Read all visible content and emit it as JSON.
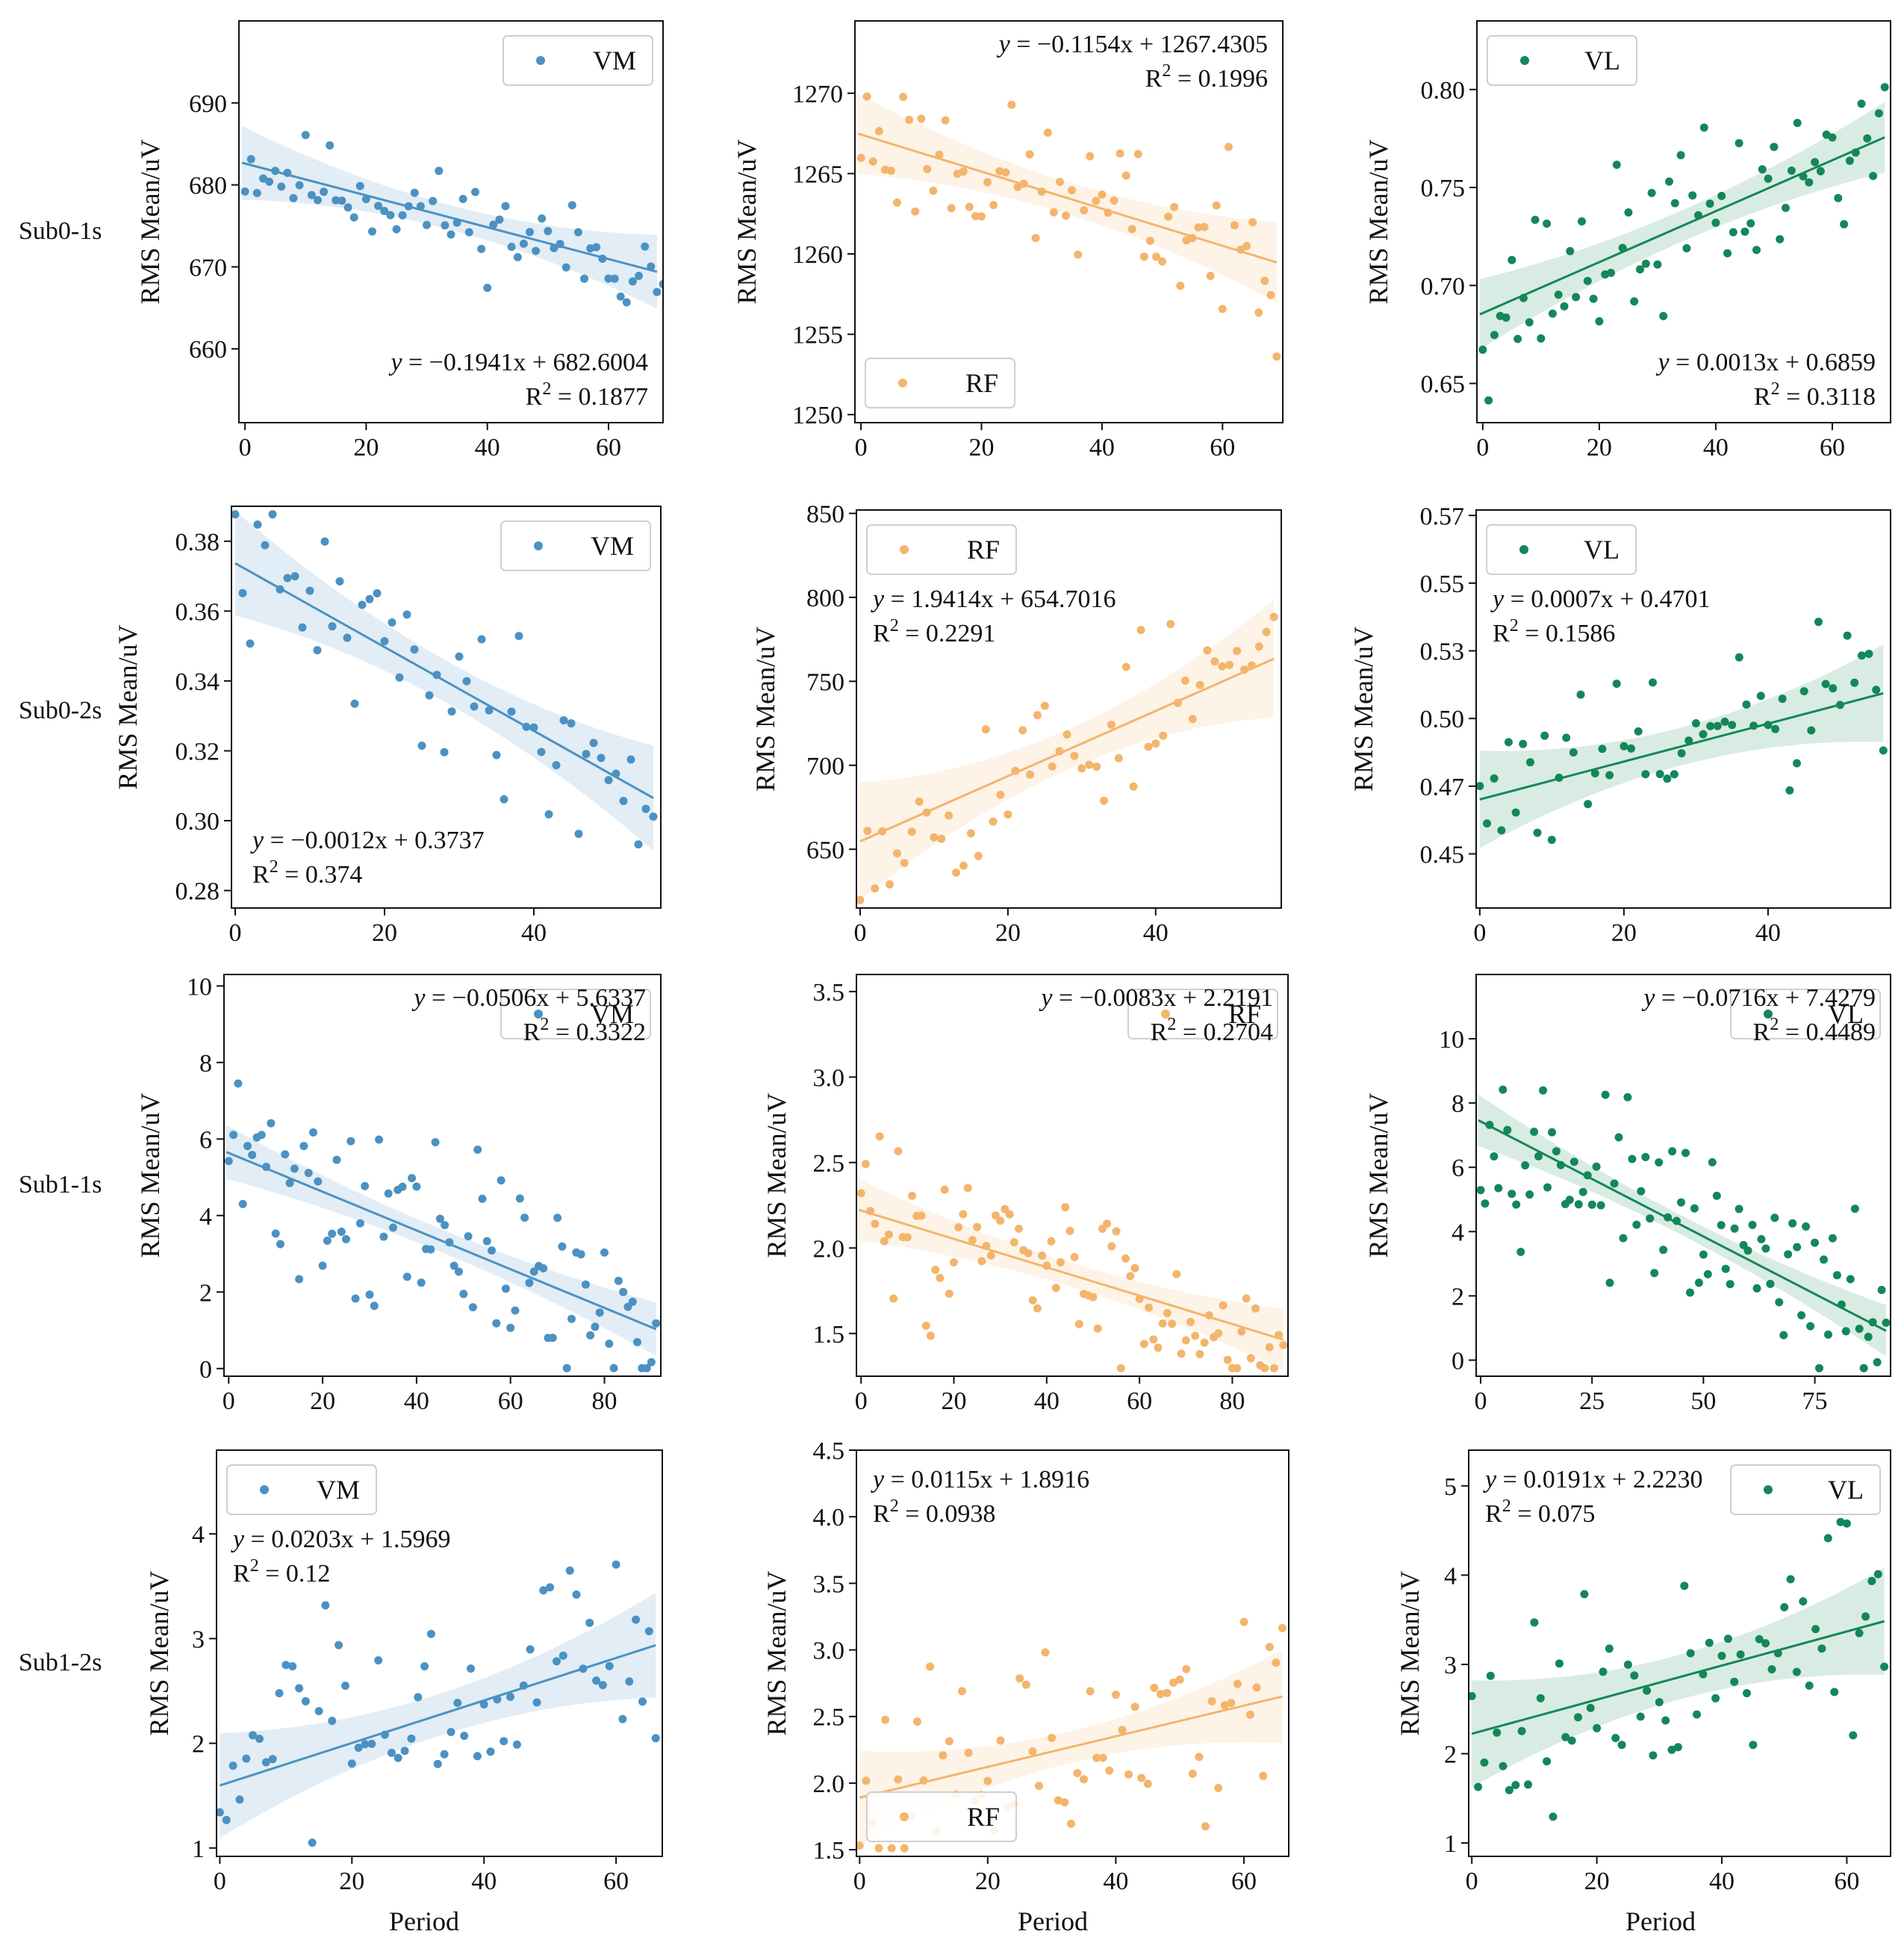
{
  "figure": {
    "x_axis_label": "Period",
    "y_axis_label": "RMS Mean/uV",
    "row_labels": [
      "Sub0-1s",
      "Sub0-2s",
      "Sub1-1s",
      "Sub1-2s"
    ],
    "colors": {
      "VM": "#4b91c2",
      "RF": "#f3b56c",
      "VL": "#13875a"
    }
  },
  "chart_data": [
    {
      "type": "scatter",
      "row": 0,
      "col": 0,
      "series_name": "VM",
      "legend_pos": "top-right",
      "eq_pos": "bottom-right",
      "equation_y": "y",
      "equation_rest": " = −0.1941x + 682.6004",
      "r2_label": "R",
      "r2_sup": "2",
      "r2_value": " = 0.1877",
      "slope": -0.1941,
      "intercept": 682.6004,
      "ci_halfwidth": [
        4.5,
        1.5,
        4
      ],
      "xlim": [
        -1,
        69
      ],
      "ylim": [
        651,
        700
      ],
      "xticks": [
        0,
        20,
        40,
        60
      ],
      "yticks": [
        660,
        670,
        680,
        690
      ],
      "grid": false,
      "noise": 6,
      "seed": 11,
      "n_points": 70
    },
    {
      "type": "scatter",
      "row": 0,
      "col": 1,
      "series_name": "RF",
      "legend_pos": "bottom-left",
      "eq_pos": "top-right",
      "equation_y": "y",
      "equation_rest": " = −0.1154x + 1267.4305",
      "r2_label": "R",
      "r2_sup": "2",
      "r2_value": " = 0.1996",
      "slope": -0.1154,
      "intercept": 1267.4305,
      "ci_halfwidth": [
        2.5,
        1,
        2.5
      ],
      "xlim": [
        -1,
        70
      ],
      "ylim": [
        1249.5,
        1274.5
      ],
      "xticks": [
        0,
        20,
        40,
        60
      ],
      "yticks": [
        1250,
        1255,
        1260,
        1265,
        1270
      ],
      "grid": false,
      "noise": 5,
      "seed": 23,
      "n_points": 70
    },
    {
      "type": "scatter",
      "row": 0,
      "col": 2,
      "series_name": "VL",
      "legend_pos": "top-left",
      "eq_pos": "bottom-right",
      "equation_y": "y",
      "equation_rest": " = 0.0013x + 0.6859",
      "r2_label": "R",
      "r2_sup": "2",
      "r2_value": " = 0.3118",
      "slope": 0.0013,
      "intercept": 0.6859,
      "ci_halfwidth": [
        0.018,
        0.008,
        0.018
      ],
      "xlim": [
        -1,
        70
      ],
      "ylim": [
        0.63,
        0.835
      ],
      "xticks": [
        0,
        20,
        40,
        60
      ],
      "yticks": [
        0.65,
        0.7,
        0.75,
        0.8
      ],
      "grid": false,
      "noise": 0.045,
      "seed": 37,
      "n_points": 70
    },
    {
      "type": "scatter",
      "row": 1,
      "col": 0,
      "series_name": "VM",
      "legend_pos": "top-right",
      "eq_pos": "bottom-left",
      "equation_y": "y",
      "equation_rest": " = −0.0012x + 0.3737",
      "r2_label": "R",
      "r2_sup": "2",
      "r2_value": " = 0.374",
      "slope": -0.0012,
      "intercept": 0.3737,
      "ci_halfwidth": [
        0.015,
        0.006,
        0.015
      ],
      "xlim": [
        -0.5,
        57
      ],
      "ylim": [
        0.275,
        0.39
      ],
      "xticks": [
        0,
        20,
        40
      ],
      "yticks": [
        0.28,
        0.3,
        0.32,
        0.34,
        0.36,
        0.38
      ],
      "grid": false,
      "noise": 0.025,
      "seed": 41,
      "n_points": 57
    },
    {
      "type": "scatter",
      "row": 1,
      "col": 1,
      "series_name": "RF",
      "legend_pos": "top-left",
      "eq_pos": "top-left",
      "equation_y": "y",
      "equation_rest": " = 1.9414x +  654.7016",
      "r2_label": "R",
      "r2_sup": "2",
      "r2_value": " = 0.2291",
      "slope": 1.9414,
      "intercept": 654.7016,
      "ci_halfwidth": [
        35,
        12,
        35
      ],
      "xlim": [
        -0.5,
        57
      ],
      "ylim": [
        615,
        852
      ],
      "xticks": [
        0,
        20,
        40
      ],
      "yticks": [
        650,
        700,
        750,
        800,
        850
      ],
      "grid": false,
      "noise": 55,
      "seed": 53,
      "n_points": 57
    },
    {
      "type": "scatter",
      "row": 1,
      "col": 2,
      "series_name": "VL",
      "legend_pos": "top-left",
      "eq_pos": "top-left",
      "equation_y": "y",
      "equation_rest": " = 0.0007x +  0.4701",
      "r2_label": "R",
      "r2_sup": "2",
      "r2_value": " = 0.1586",
      "slope": 0.0007,
      "intercept": 0.4701,
      "ci_halfwidth": [
        0.018,
        0.007,
        0.018
      ],
      "xlim": [
        -0.5,
        57
      ],
      "ylim": [
        0.43,
        0.577
      ],
      "xticks": [
        0,
        20,
        40
      ],
      "yticks": [
        0.45,
        0.475,
        0.5,
        0.525,
        0.55,
        0.575
      ],
      "grid": false,
      "noise": 0.035,
      "seed": 61,
      "n_points": 57
    },
    {
      "type": "scatter",
      "row": 2,
      "col": 0,
      "series_name": "VM",
      "legend_pos": "top-right",
      "eq_pos": "top-right",
      "equation_y": "y",
      "equation_rest": " = −0.0506x + 5.6337",
      "r2_label": "R",
      "r2_sup": "2",
      "r2_value": " = 0.3322",
      "slope": -0.0506,
      "intercept": 5.6337,
      "ci_halfwidth": [
        0.7,
        0.3,
        0.7
      ],
      "xlim": [
        -1,
        92
      ],
      "ylim": [
        -0.2,
        10.3
      ],
      "xticks": [
        0,
        20,
        40,
        60,
        80
      ],
      "yticks": [
        0,
        2,
        4,
        6,
        8,
        10
      ],
      "grid": false,
      "noise": 2.8,
      "seed": 71,
      "n_points": 92
    },
    {
      "type": "scatter",
      "row": 2,
      "col": 1,
      "series_name": "RF",
      "legend_pos": "top-right",
      "eq_pos": "top-right",
      "equation_y": "y",
      "equation_rest": " = −0.0083x + 2.2191",
      "r2_label": "R",
      "r2_sup": "2",
      "r2_value": " = 0.2704",
      "slope": -0.0083,
      "intercept": 2.2191,
      "ci_halfwidth": [
        0.18,
        0.07,
        0.18
      ],
      "xlim": [
        -1,
        92
      ],
      "ylim": [
        1.25,
        3.6
      ],
      "xticks": [
        0,
        20,
        40,
        60,
        80
      ],
      "yticks": [
        1.5,
        2.0,
        2.5,
        3.0,
        3.5
      ],
      "grid": false,
      "noise": 0.5,
      "seed": 83,
      "n_points": 92
    },
    {
      "type": "scatter",
      "row": 2,
      "col": 2,
      "series_name": "VL",
      "legend_pos": "top-right",
      "eq_pos": "top-right",
      "equation_y": "y",
      "equation_rest": " = −0.0716x + 7.4279",
      "r2_label": "R",
      "r2_sup": "2",
      "r2_value": " = 0.4489",
      "slope": -0.0716,
      "intercept": 7.4279,
      "ci_halfwidth": [
        0.8,
        0.3,
        0.8
      ],
      "xlim": [
        -1,
        92
      ],
      "ylim": [
        -0.5,
        12
      ],
      "xticks": [
        0,
        25,
        50,
        75
      ],
      "yticks": [
        0,
        2,
        4,
        6,
        8,
        10
      ],
      "grid": false,
      "noise": 2.6,
      "seed": 97,
      "n_points": 92
    },
    {
      "type": "scatter",
      "row": 3,
      "col": 0,
      "series_name": "VM",
      "legend_pos": "top-left",
      "eq_pos": "top-left",
      "equation_y": "y",
      "equation_rest": " = 0.0203x + 1.5969",
      "r2_label": "R",
      "r2_sup": "2",
      "r2_value": "  = 0.12",
      "slope": 0.0203,
      "intercept": 1.5969,
      "ci_halfwidth": [
        0.5,
        0.2,
        0.5
      ],
      "xlim": [
        -0.5,
        67
      ],
      "ylim": [
        0.92,
        4.8
      ],
      "xticks": [
        0,
        20,
        40,
        60
      ],
      "yticks": [
        1,
        2,
        3,
        4
      ],
      "grid": false,
      "noise": 1.1,
      "seed": 103,
      "n_points": 67
    },
    {
      "type": "scatter",
      "row": 3,
      "col": 1,
      "series_name": "RF",
      "legend_pos": "bottom-left",
      "eq_pos": "top-left",
      "equation_y": "y",
      "equation_rest": " = 0.0115x + 1.8916",
      "r2_label": "R",
      "r2_sup": "2",
      "r2_value": " = 0.0938",
      "slope": 0.0115,
      "intercept": 1.8916,
      "ci_halfwidth": [
        0.35,
        0.12,
        0.35
      ],
      "xlim": [
        -0.5,
        67
      ],
      "ylim": [
        1.45,
        4.5
      ],
      "xticks": [
        0,
        20,
        40,
        60
      ],
      "yticks": [
        1.5,
        2.0,
        2.5,
        3.0,
        3.5,
        4.0,
        4.5
      ],
      "grid": false,
      "noise": 0.8,
      "seed": 113,
      "n_points": 67
    },
    {
      "type": "scatter",
      "row": 3,
      "col": 2,
      "series_name": "VL",
      "legend_pos": "top-right",
      "eq_pos": "top-left",
      "equation_y": "y",
      "equation_rest": " = 0.0191x + 2.2230",
      "r2_label": "R",
      "r2_sup": "2",
      "r2_value": " = 0.075",
      "slope": 0.0191,
      "intercept": 2.223,
      "ci_halfwidth": [
        0.6,
        0.25,
        0.6
      ],
      "xlim": [
        -0.5,
        67
      ],
      "ylim": [
        0.85,
        5.4
      ],
      "xticks": [
        0,
        20,
        40,
        60
      ],
      "yticks": [
        1,
        2,
        3,
        4,
        5
      ],
      "grid": false,
      "noise": 1.3,
      "seed": 127,
      "n_points": 67
    }
  ]
}
